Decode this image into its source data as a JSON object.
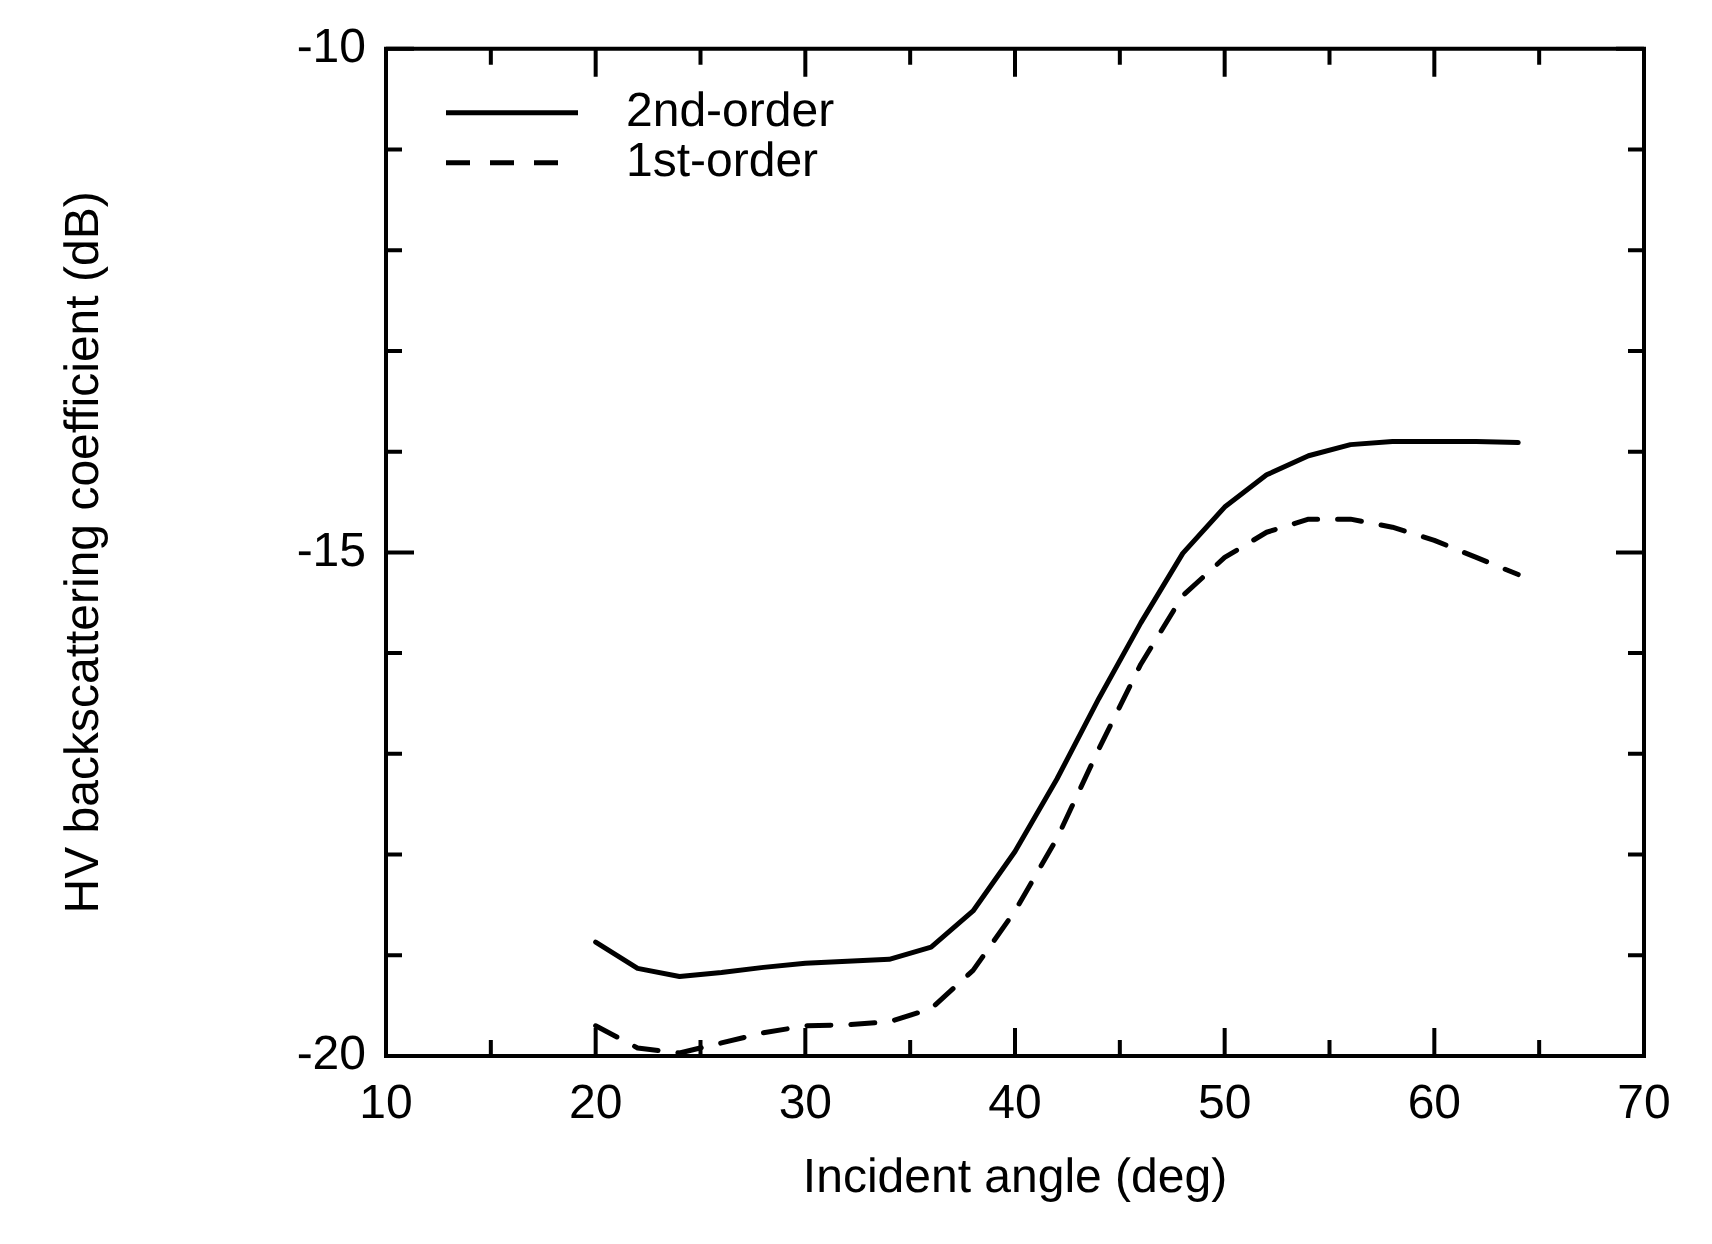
{
  "chart_data": {
    "type": "line",
    "xlabel": "Incident angle (deg)",
    "ylabel": "HV backscattering coefficient (dB)",
    "xlim": [
      10,
      70
    ],
    "xticks": [
      10,
      {
        "value": 15,
        "label": null
      },
      20,
      {
        "value": 25,
        "label": null
      },
      30,
      {
        "value": 35,
        "label": null
      },
      40,
      {
        "value": 45,
        "label": null
      },
      50,
      {
        "value": 55,
        "label": null
      },
      60,
      {
        "value": 65,
        "label": null
      },
      70
    ],
    "ylim": [
      -20,
      -10
    ],
    "yticks": [
      -20,
      {
        "value": -19,
        "label": null
      },
      {
        "value": -18,
        "label": null
      },
      {
        "value": -17,
        "label": null
      },
      {
        "value": -16,
        "label": null
      },
      -15,
      {
        "value": -14,
        "label": null
      },
      {
        "value": -13,
        "label": null
      },
      {
        "value": -12,
        "label": null
      },
      {
        "value": -11,
        "label": null
      },
      -10
    ],
    "x": [
      20,
      22,
      24,
      26,
      28,
      30,
      32,
      34,
      36,
      38,
      40,
      42,
      44,
      46,
      48,
      50,
      52,
      54,
      56,
      58,
      60,
      62,
      64
    ],
    "legend": "top left",
    "marker": "none",
    "grid": false,
    "series": [
      {
        "name": "2nd-order",
        "color": "#000000",
        "line_style": "solid",
        "values": [
          -18.87,
          -19.13,
          -19.21,
          -19.17,
          -19.12,
          -19.08,
          -19.06,
          -19.04,
          -18.92,
          -18.56,
          -17.97,
          -17.25,
          -16.45,
          -15.7,
          -15.01,
          -14.55,
          -14.23,
          -14.04,
          -13.93,
          -13.9,
          -13.9,
          -13.9,
          -13.91
        ]
      },
      {
        "name": "1st-order",
        "color": "#000000",
        "line_style": "dashed",
        "values": [
          -19.7,
          -19.92,
          -19.97,
          -19.87,
          -19.77,
          -19.7,
          -19.69,
          -19.66,
          -19.53,
          -19.15,
          -18.56,
          -17.84,
          -16.95,
          -16.11,
          -15.43,
          -15.05,
          -14.8,
          -14.67,
          -14.67,
          -14.75,
          -14.88,
          -15.05,
          -15.22
        ]
      }
    ]
  }
}
